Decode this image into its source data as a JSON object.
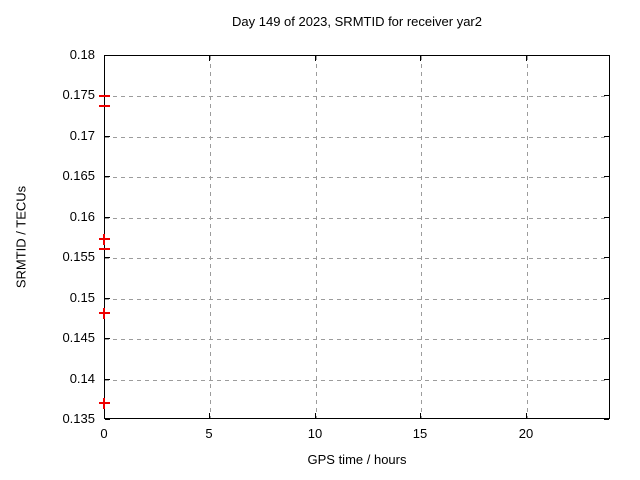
{
  "title": "Day 149 of 2023, SRMTID for receiver yar2",
  "colors": {
    "background": "#ffffff",
    "axis": "#000000",
    "grid": "#9c9c9c",
    "text": "#000000",
    "marker": "#ee0000"
  },
  "chart_data": {
    "type": "scatter",
    "title": "Day 149 of 2023, SRMTID for receiver yar2",
    "xlabel": "GPS time / hours",
    "ylabel": "SRMTID / TECUs",
    "xlim": [
      0,
      24
    ],
    "ylim": [
      0.135,
      0.18
    ],
    "xticks": [
      "0",
      "5",
      "10",
      "15",
      "20"
    ],
    "yticks": [
      "0.135",
      "0.14",
      "0.145",
      "0.15",
      "0.155",
      "0.16",
      "0.165",
      "0.17",
      "0.175",
      "0.18"
    ],
    "grid": true,
    "grid_style": "dashed",
    "legend_position": "none",
    "series": [
      {
        "name": "SRMTID",
        "marker": "plus",
        "color": "#ee0000",
        "points": [
          {
            "x": 0,
            "y": 0.1749,
            "style": "dash"
          },
          {
            "x": 0,
            "y": 0.1737,
            "style": "dash"
          },
          {
            "x": 0,
            "y": 0.1573,
            "style": "plus"
          },
          {
            "x": 0,
            "y": 0.156,
            "style": "dash"
          },
          {
            "x": 0,
            "y": 0.1481,
            "style": "plus"
          },
          {
            "x": 0,
            "y": 0.137,
            "style": "plus"
          }
        ]
      }
    ]
  }
}
